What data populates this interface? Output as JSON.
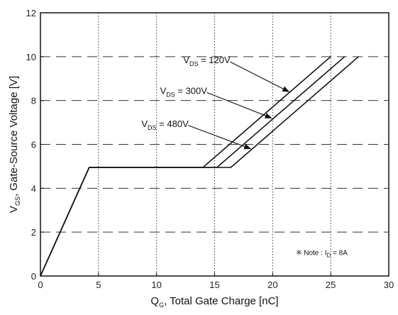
{
  "chart_data": {
    "type": "line",
    "xlabel": {
      "main": "Q",
      "sub": "G",
      "rest": ", Total Gate Charge [nC]"
    },
    "ylabel": {
      "main": "V",
      "sub": "GS",
      "rest": ", Gate-Source Voltage [V]"
    },
    "xlim": [
      0,
      30
    ],
    "ylim": [
      0,
      12
    ],
    "xticks": [
      0,
      5,
      10,
      15,
      20,
      25,
      30
    ],
    "yticks": [
      0,
      2,
      4,
      6,
      8,
      10,
      12
    ],
    "grid": {
      "x": "dotted-vertical",
      "y": "dashed-horizontal"
    },
    "series": [
      {
        "x": [
          0,
          4.2,
          14,
          25
        ],
        "y": [
          0,
          4.95,
          4.95,
          10
        ]
      },
      {
        "x": [
          0,
          4.2,
          15.2,
          26.2
        ],
        "y": [
          0,
          4.95,
          4.95,
          10
        ]
      },
      {
        "x": [
          0,
          4.2,
          16.4,
          27.4
        ],
        "y": [
          0,
          4.95,
          4.95,
          10
        ]
      }
    ],
    "annotations": [
      {
        "pre": "V",
        "sub": "DS",
        "post": " = 120V",
        "text_x": 12.3,
        "text_y": 9.7,
        "arrow_to_x": 21.4,
        "arrow_to_y": 8.4
      },
      {
        "pre": "V",
        "sub": "DS",
        "post": " = 300V",
        "text_x": 10.3,
        "text_y": 8.3,
        "arrow_to_x": 19.9,
        "arrow_to_y": 7.2
      },
      {
        "pre": "V",
        "sub": "DS",
        "post": " = 480V",
        "text_x": 8.7,
        "text_y": 6.8,
        "arrow_to_x": 18.1,
        "arrow_to_y": 5.8
      }
    ],
    "note": {
      "symbol": "※",
      "pre": " Note : I",
      "sub": "D",
      "post": " = 8A",
      "x": 22.0,
      "y": 0.95
    }
  }
}
